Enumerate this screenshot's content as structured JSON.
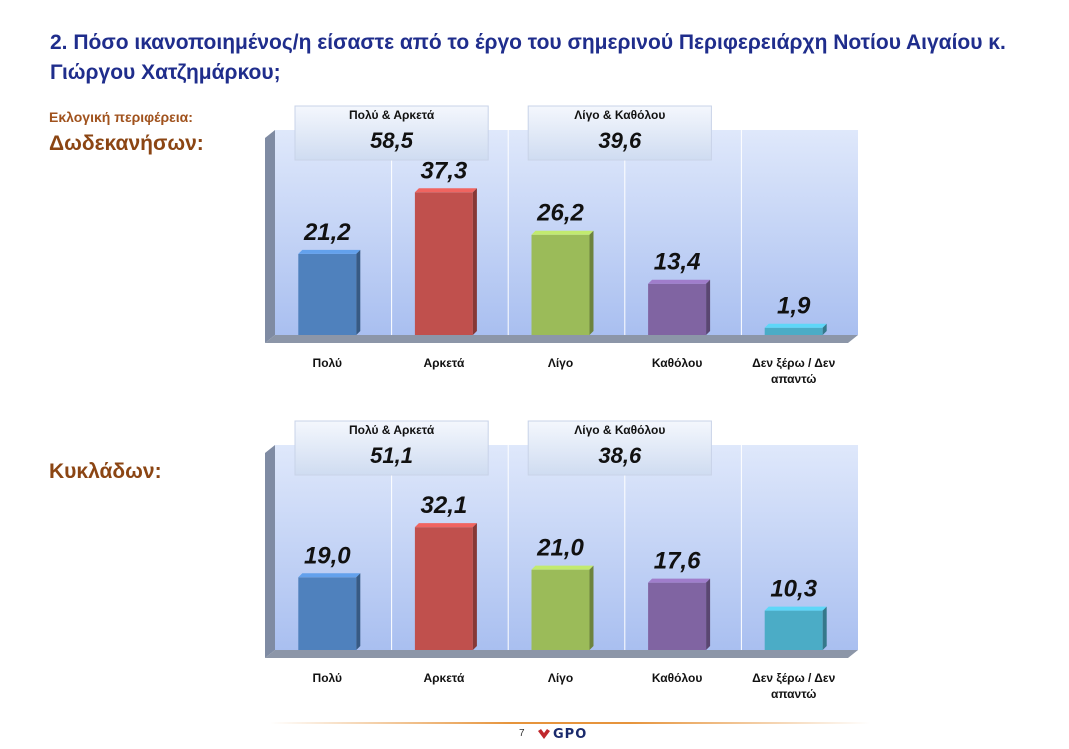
{
  "title": "2. Πόσο ικανοποιημένος/η είσαστε από το έργο του σημερινού Περιφερειάρχη Νοτίου Αιγαίου κ. Γιώργου Χατζημάρκου;",
  "region_caption": "Εκλογική περιφέρεια:",
  "footer": {
    "page_number": "7",
    "logo_text": "GPO"
  },
  "colors": {
    "title": "#1f2d8c",
    "region": "#8b4513",
    "bars": [
      "#4f81bd",
      "#c0504d",
      "#9bbb59",
      "#8064a2",
      "#4bacc6"
    ]
  },
  "chart_data": [
    {
      "type": "bar",
      "region": "Δωδεκανήσων:",
      "categories": [
        "Πολύ",
        "Αρκετά",
        "Λίγο",
        "Καθόλου",
        "Δεν ξέρω / Δεν απαντώ"
      ],
      "values": [
        21.2,
        37.3,
        26.2,
        13.4,
        1.9
      ],
      "value_labels": [
        "21,2",
        "37,3",
        "26,2",
        "13,4",
        "1,9"
      ],
      "summary_boxes": [
        {
          "label": "Πολύ & Αρκετά",
          "value": "58,5"
        },
        {
          "label": "Λίγο & Καθόλου",
          "value": "39,6"
        }
      ],
      "ylim": [
        0,
        60
      ]
    },
    {
      "type": "bar",
      "region": "Κυκλάδων:",
      "categories": [
        "Πολύ",
        "Αρκετά",
        "Λίγο",
        "Καθόλου",
        "Δεν ξέρω / Δεν απαντώ"
      ],
      "values": [
        19.0,
        32.1,
        21.0,
        17.6,
        10.3
      ],
      "value_labels": [
        "19,0",
        "32,1",
        "21,0",
        "17,6",
        "10,3"
      ],
      "summary_boxes": [
        {
          "label": "Πολύ & Αρκετά",
          "value": "51,1"
        },
        {
          "label": "Λίγο & Καθόλου",
          "value": "38,6"
        }
      ],
      "ylim": [
        0,
        60
      ]
    }
  ]
}
